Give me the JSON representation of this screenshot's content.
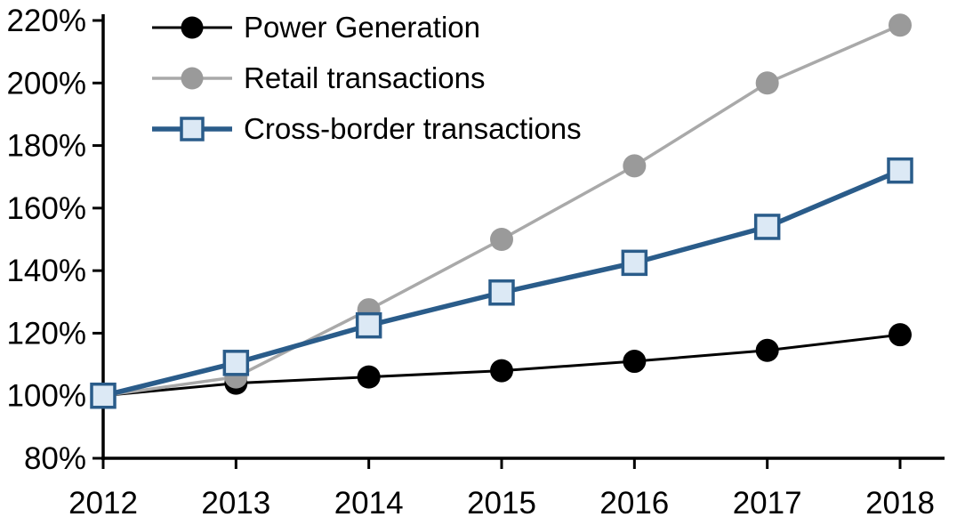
{
  "chart_data": {
    "type": "line",
    "title": "",
    "xlabel": "",
    "ylabel": "",
    "x": [
      2012,
      2013,
      2014,
      2015,
      2016,
      2017,
      2018
    ],
    "xtick_labels": [
      "2012",
      "2013",
      "2014",
      "2015",
      "2016",
      "2017",
      "2018"
    ],
    "ylim": [
      80,
      220
    ],
    "ytick_step": 20,
    "ytick_labels": [
      "80%",
      "100%",
      "120%",
      "140%",
      "160%",
      "180%",
      "200%",
      "220%"
    ],
    "grid": false,
    "legend_position": "top-left",
    "background_color": "#FFFFFF",
    "axis_color": "#000000",
    "text_color": "#000000",
    "series": [
      {
        "id": "power-generation",
        "name": "Power Generation",
        "marker": "circle",
        "line_color": "#000000",
        "marker_fill": "#000000",
        "marker_stroke": "#000000",
        "line_width": 3,
        "values": [
          100,
          104,
          106,
          108,
          111,
          114.5,
          119.5
        ]
      },
      {
        "id": "retail-transactions",
        "name": "Retail transactions",
        "marker": "circle",
        "line_color": "#A9A9A9",
        "marker_fill": "#9A9A9A",
        "marker_stroke": "#9A9A9A",
        "line_width": 3.5,
        "values": [
          100,
          106,
          127.5,
          150,
          173.5,
          200,
          218.5
        ]
      },
      {
        "id": "cross-border-transactions",
        "name": "Cross-border transactions",
        "marker": "square",
        "line_color": "#2A5C8A",
        "marker_fill": "#DCE9F5",
        "marker_stroke": "#2A5C8A",
        "line_width": 5.5,
        "values": [
          100,
          110.5,
          122.5,
          133,
          142.5,
          154,
          172
        ]
      }
    ]
  }
}
